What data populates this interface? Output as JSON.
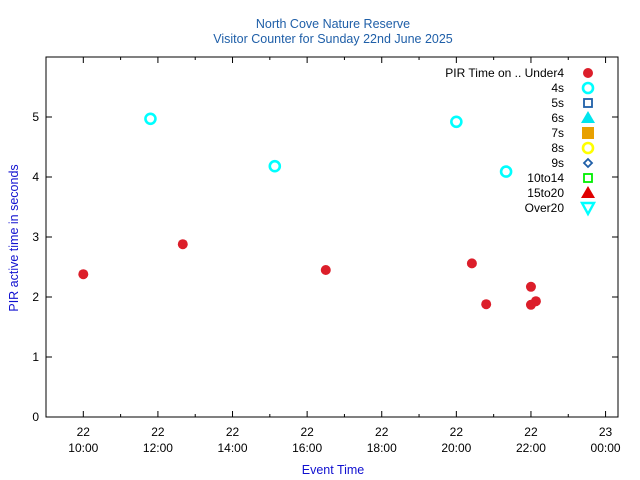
{
  "chart_data": {
    "type": "scatter",
    "title": "North Cove Nature Reserve",
    "subtitle": "Visitor Counter for Sunday 22nd June 2025",
    "xlabel": "Event Time",
    "ylabel": "PIR active time in seconds",
    "ylim": [
      0,
      6
    ],
    "xlim": [
      "2025-06-22 09:00",
      "2025-06-23 00:20"
    ],
    "yticks": [
      "0",
      "1",
      "2",
      "3",
      "4",
      "5"
    ],
    "xticks": [
      {
        "t": "2025-06-22 10:00",
        "day": "22",
        "time": "10:00"
      },
      {
        "t": "2025-06-22 12:00",
        "day": "22",
        "time": "12:00"
      },
      {
        "t": "2025-06-22 14:00",
        "day": "22",
        "time": "14:00"
      },
      {
        "t": "2025-06-22 16:00",
        "day": "22",
        "time": "16:00"
      },
      {
        "t": "2025-06-22 18:00",
        "day": "22",
        "time": "18:00"
      },
      {
        "t": "2025-06-22 20:00",
        "day": "22",
        "time": "20:00"
      },
      {
        "t": "2025-06-22 22:00",
        "day": "22",
        "time": "22:00"
      },
      {
        "t": "2025-06-23 00:00",
        "day": "23",
        "time": "00:00"
      }
    ],
    "grid": false,
    "legend_position": "top-right",
    "legend_prefix": "PIR Time on ..",
    "series": [
      {
        "name": "Under4",
        "marker": "filled-circle",
        "color": "#dc1e2a",
        "points": [
          {
            "x": "2025-06-22 10:00",
            "y": 2.38
          },
          {
            "x": "2025-06-22 12:40",
            "y": 2.88
          },
          {
            "x": "2025-06-22 16:30",
            "y": 2.45
          },
          {
            "x": "2025-06-22 20:25",
            "y": 2.56
          },
          {
            "x": "2025-06-22 20:48",
            "y": 1.88
          },
          {
            "x": "2025-06-22 22:00",
            "y": 2.17
          },
          {
            "x": "2025-06-22 22:00",
            "y": 1.87
          },
          {
            "x": "2025-06-22 22:08",
            "y": 1.93
          }
        ]
      },
      {
        "name": "4s",
        "marker": "open-circle",
        "color": "#00ffff",
        "points": [
          {
            "x": "2025-06-22 11:48",
            "y": 4.97
          },
          {
            "x": "2025-06-22 15:08",
            "y": 4.18
          },
          {
            "x": "2025-06-22 20:00",
            "y": 4.92
          },
          {
            "x": "2025-06-22 21:20",
            "y": 4.09
          }
        ]
      },
      {
        "name": "5s",
        "marker": "open-square",
        "color": "#1f5fa8",
        "points": []
      },
      {
        "name": "6s",
        "marker": "filled-triangle-up",
        "color": "#00e5ee",
        "points": []
      },
      {
        "name": "7s",
        "marker": "filled-square",
        "color": "#e8a000",
        "points": []
      },
      {
        "name": "8s",
        "marker": "open-circle",
        "color": "#ffff00",
        "points": []
      },
      {
        "name": "9s",
        "marker": "open-diamond",
        "color": "#1f5fa8",
        "points": []
      },
      {
        "name": "10to14",
        "marker": "open-square",
        "color": "#00ee00",
        "points": []
      },
      {
        "name": "15to20",
        "marker": "filled-triangle-up",
        "color": "#e00000",
        "points": []
      },
      {
        "name": "Over20",
        "marker": "open-triangle-down",
        "color": "#00ffff",
        "points": []
      }
    ]
  },
  "colors": {
    "title": "#1f5fa8",
    "axis_label": "#1010d0",
    "axis": "#000000"
  }
}
